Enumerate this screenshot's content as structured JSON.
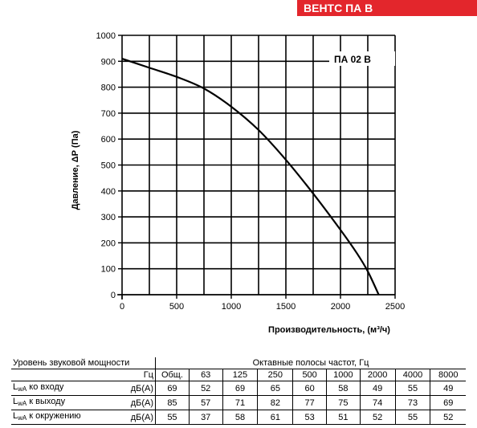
{
  "brand": {
    "label": "ВЕНТС ПА В"
  },
  "chart_data": {
    "type": "line",
    "model_label": "ПА 02 В",
    "xlabel": "Производительность, (м³/ч)",
    "ylabel": "Давление, ΔР (Па)",
    "xlim": [
      0,
      2500
    ],
    "ylim": [
      0,
      1000
    ],
    "xticks": [
      0,
      500,
      1000,
      1500,
      2000,
      2500
    ],
    "yticks": [
      0,
      100,
      200,
      300,
      400,
      500,
      600,
      700,
      800,
      900,
      1000
    ],
    "x_gridlines": [
      250,
      500,
      750,
      1000,
      1250,
      1500,
      1750,
      2000,
      2250,
      2500
    ],
    "grid": true,
    "series": [
      {
        "x": [
          0,
          250,
          500,
          750,
          1000,
          1250,
          1500,
          1750,
          2000,
          2150,
          2250,
          2350
        ],
        "y": [
          910,
          875,
          840,
          795,
          725,
          635,
          520,
          390,
          250,
          160,
          90,
          0
        ]
      }
    ]
  },
  "sound_table": {
    "title": "Уровень звуковой мощности",
    "bands_title": "Октавные полосы частот, Гц",
    "hz_label": "Гц",
    "columns": [
      "Общ.",
      "63",
      "125",
      "250",
      "500",
      "1000",
      "2000",
      "4000",
      "8000"
    ],
    "rows": [
      {
        "label_main": "L",
        "label_sub": "wA",
        "label_rest": " ко входу",
        "unit": "дБ(А)",
        "values": [
          "69",
          "52",
          "69",
          "65",
          "60",
          "58",
          "49",
          "55",
          "49"
        ]
      },
      {
        "label_main": "L",
        "label_sub": "wA",
        "label_rest": " к выходу",
        "unit": "дБ(А)",
        "values": [
          "85",
          "57",
          "71",
          "82",
          "77",
          "75",
          "74",
          "73",
          "69"
        ]
      },
      {
        "label_main": "L",
        "label_sub": "wA",
        "label_rest": " к окружению",
        "unit": "дБ(А)",
        "values": [
          "55",
          "37",
          "58",
          "61",
          "53",
          "51",
          "52",
          "55",
          "52"
        ]
      }
    ]
  }
}
